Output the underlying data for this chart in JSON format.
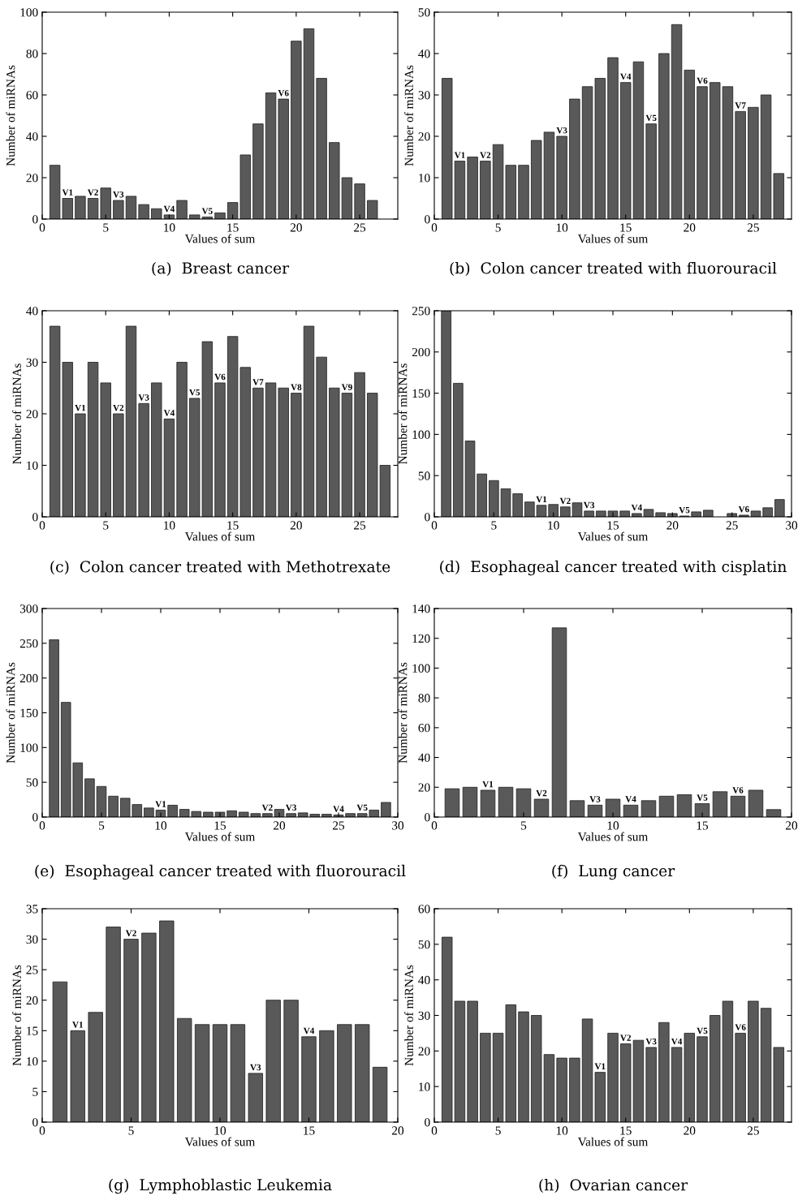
{
  "chart_data": [
    {
      "type": "bar",
      "title": "(a)  Breast cancer",
      "xlabel": "Values of sum",
      "ylabel": "Number of miRNAs",
      "color": "#595959",
      "x": [
        1,
        2,
        3,
        4,
        5,
        6,
        7,
        8,
        9,
        10,
        11,
        12,
        13,
        14,
        15,
        16,
        17,
        18,
        19,
        20,
        21,
        22,
        23,
        24,
        25,
        26
      ],
      "values": [
        26,
        10,
        11,
        10,
        15,
        9,
        11,
        7,
        5,
        2,
        9,
        2,
        1,
        3,
        8,
        31,
        46,
        61,
        58,
        86,
        92,
        68,
        37,
        20,
        17,
        9
      ],
      "xlim": [
        0,
        28
      ],
      "xticks": [
        0,
        5,
        10,
        15,
        20,
        25
      ],
      "ylim": [
        0,
        100
      ],
      "yticks": [
        0,
        20,
        40,
        60,
        80,
        100
      ],
      "annotations": [
        {
          "text": "V1",
          "x": 2,
          "y": 10
        },
        {
          "text": "V2",
          "x": 4,
          "y": 10
        },
        {
          "text": "V3",
          "x": 6,
          "y": 9
        },
        {
          "text": "V4",
          "x": 10,
          "y": 2
        },
        {
          "text": "V5",
          "x": 13,
          "y": 1
        },
        {
          "text": "V6",
          "x": 19,
          "y": 58
        }
      ]
    },
    {
      "type": "bar",
      "title": "(b)  Colon cancer treated with fluorouracil",
      "xlabel": "Values of sum",
      "ylabel": "Number of miRNAs",
      "color": "#595959",
      "x": [
        1,
        2,
        3,
        4,
        5,
        6,
        7,
        8,
        9,
        10,
        11,
        12,
        13,
        14,
        15,
        16,
        17,
        18,
        19,
        20,
        21,
        22,
        23,
        24,
        25,
        26,
        27
      ],
      "values": [
        34,
        14,
        15,
        14,
        18,
        13,
        13,
        19,
        21,
        20,
        29,
        32,
        34,
        39,
        33,
        38,
        23,
        40,
        47,
        36,
        32,
        33,
        32,
        26,
        27,
        30,
        11
      ],
      "xlim": [
        0,
        28
      ],
      "xticks": [
        0,
        5,
        10,
        15,
        20,
        25
      ],
      "ylim": [
        0,
        50
      ],
      "yticks": [
        0,
        10,
        20,
        30,
        40,
        50
      ],
      "annotations": [
        {
          "text": "V1",
          "x": 2,
          "y": 14
        },
        {
          "text": "V2",
          "x": 4,
          "y": 14
        },
        {
          "text": "V3",
          "x": 10,
          "y": 20
        },
        {
          "text": "V4",
          "x": 15,
          "y": 33
        },
        {
          "text": "V5",
          "x": 17,
          "y": 23
        },
        {
          "text": "V6",
          "x": 21,
          "y": 32
        },
        {
          "text": "V7",
          "x": 24,
          "y": 26
        }
      ]
    },
    {
      "type": "bar",
      "title": "(c)  Colon cancer treated with Methotrexate",
      "xlabel": "Values of sum",
      "ylabel": "Number of miRNAs",
      "color": "#595959",
      "x": [
        1,
        2,
        3,
        4,
        5,
        6,
        7,
        8,
        9,
        10,
        11,
        12,
        13,
        14,
        15,
        16,
        17,
        18,
        19,
        20,
        21,
        22,
        23,
        24,
        25,
        26,
        27
      ],
      "values": [
        37,
        30,
        20,
        30,
        26,
        20,
        37,
        22,
        26,
        19,
        30,
        23,
        34,
        26,
        35,
        29,
        25,
        26,
        25,
        24,
        37,
        31,
        25,
        24,
        28,
        24,
        10
      ],
      "xlim": [
        0,
        28
      ],
      "xticks": [
        0,
        5,
        10,
        15,
        20,
        25
      ],
      "ylim": [
        0,
        40
      ],
      "yticks": [
        0,
        10,
        20,
        30,
        40
      ],
      "annotations": [
        {
          "text": "V1",
          "x": 3,
          "y": 20
        },
        {
          "text": "V2",
          "x": 6,
          "y": 20
        },
        {
          "text": "V3",
          "x": 8,
          "y": 22
        },
        {
          "text": "V4",
          "x": 10,
          "y": 19
        },
        {
          "text": "V5",
          "x": 12,
          "y": 23
        },
        {
          "text": "V6",
          "x": 14,
          "y": 26
        },
        {
          "text": "V7",
          "x": 17,
          "y": 25
        },
        {
          "text": "V8",
          "x": 20,
          "y": 24
        },
        {
          "text": "V9",
          "x": 24,
          "y": 24
        }
      ]
    },
    {
      "type": "bar",
      "title": "(d)  Esophageal cancer treated with cisplatin",
      "xlabel": "Values of sum",
      "ylabel": "Number of miRNAs",
      "color": "#595959",
      "x": [
        1,
        2,
        3,
        4,
        5,
        6,
        7,
        8,
        9,
        10,
        11,
        12,
        13,
        14,
        15,
        16,
        17,
        18,
        19,
        20,
        21,
        22,
        23,
        24,
        25,
        26,
        27,
        28,
        29
      ],
      "values": [
        250,
        162,
        92,
        52,
        44,
        34,
        28,
        18,
        14,
        15,
        12,
        17,
        7,
        7,
        7,
        7,
        4,
        9,
        5,
        4,
        1,
        6,
        8,
        null,
        4,
        2,
        7,
        11,
        21
      ],
      "xlim": [
        0,
        30
      ],
      "xticks": [
        0,
        5,
        10,
        15,
        20,
        25,
        30
      ],
      "ylim": [
        0,
        250
      ],
      "yticks": [
        0,
        50,
        100,
        150,
        200,
        250
      ],
      "annotations": [
        {
          "text": "V1",
          "x": 9,
          "y": 14
        },
        {
          "text": "V2",
          "x": 11,
          "y": 12
        },
        {
          "text": "V3",
          "x": 13,
          "y": 7
        },
        {
          "text": "V4",
          "x": 17,
          "y": 4
        },
        {
          "text": "V5",
          "x": 21,
          "y": 1
        },
        {
          "text": "V6",
          "x": 26,
          "y": 2
        }
      ]
    },
    {
      "type": "bar",
      "title": "(e)  Esophageal cancer treated with fluorouracil",
      "xlabel": "Values of sum",
      "ylabel": "Number of miRNAs",
      "color": "#595959",
      "x": [
        1,
        2,
        3,
        4,
        5,
        6,
        7,
        8,
        9,
        10,
        11,
        12,
        13,
        14,
        15,
        16,
        17,
        18,
        19,
        20,
        21,
        22,
        23,
        24,
        25,
        26,
        27,
        28,
        29
      ],
      "values": [
        255,
        165,
        78,
        55,
        44,
        30,
        27,
        18,
        13,
        10,
        17,
        11,
        8,
        7,
        7,
        9,
        7,
        5,
        5,
        11,
        5,
        6,
        4,
        4,
        3,
        5,
        5,
        10,
        21
      ],
      "xlim": [
        0,
        30
      ],
      "xticks": [
        0,
        5,
        10,
        15,
        20,
        25,
        30
      ],
      "ylim": [
        0,
        300
      ],
      "yticks": [
        0,
        50,
        100,
        150,
        200,
        250,
        300
      ],
      "annotations": [
        {
          "text": "V1",
          "x": 10,
          "y": 10
        },
        {
          "text": "V2",
          "x": 19,
          "y": 5
        },
        {
          "text": "V3",
          "x": 21,
          "y": 5
        },
        {
          "text": "V4",
          "x": 25,
          "y": 3
        },
        {
          "text": "V5",
          "x": 27,
          "y": 5
        }
      ]
    },
    {
      "type": "bar",
      "title": "(f)  Lung cancer",
      "xlabel": "Values of sum",
      "ylabel": "Number of miRNAs",
      "color": "#595959",
      "x": [
        1,
        2,
        3,
        4,
        5,
        6,
        7,
        8,
        9,
        10,
        11,
        12,
        13,
        14,
        15,
        16,
        17,
        18,
        19
      ],
      "values": [
        19,
        20,
        18,
        20,
        19,
        12,
        127,
        11,
        8,
        12,
        8,
        11,
        14,
        15,
        9,
        17,
        14,
        18,
        5
      ],
      "xlim": [
        0,
        20
      ],
      "xticks": [
        0,
        5,
        10,
        15,
        20
      ],
      "ylim": [
        0,
        140
      ],
      "yticks": [
        0,
        20,
        40,
        60,
        80,
        100,
        120,
        140
      ],
      "annotations": [
        {
          "text": "V1",
          "x": 3,
          "y": 18
        },
        {
          "text": "V2",
          "x": 6,
          "y": 12
        },
        {
          "text": "V3",
          "x": 9,
          "y": 8
        },
        {
          "text": "V4",
          "x": 11,
          "y": 8
        },
        {
          "text": "V5",
          "x": 15,
          "y": 9
        },
        {
          "text": "V6",
          "x": 17,
          "y": 14
        }
      ]
    },
    {
      "type": "bar",
      "title": "(g)  Lymphoblastic Leukemia",
      "xlabel": "Values of sum",
      "ylabel": "Number of miRNAs",
      "color": "#595959",
      "x": [
        1,
        2,
        3,
        4,
        5,
        6,
        7,
        8,
        9,
        10,
        11,
        12,
        13,
        14,
        15,
        16,
        17,
        18,
        19
      ],
      "values": [
        23,
        15,
        18,
        32,
        30,
        31,
        33,
        17,
        16,
        16,
        16,
        8,
        20,
        20,
        14,
        15,
        16,
        16,
        9
      ],
      "xlim": [
        0,
        20
      ],
      "xticks": [
        0,
        5,
        10,
        15,
        20
      ],
      "ylim": [
        0,
        35
      ],
      "yticks": [
        0,
        5,
        10,
        15,
        20,
        25,
        30,
        35
      ],
      "annotations": [
        {
          "text": "V1",
          "x": 2,
          "y": 15
        },
        {
          "text": "V2",
          "x": 5,
          "y": 30
        },
        {
          "text": "V3",
          "x": 12,
          "y": 8
        },
        {
          "text": "V4",
          "x": 15,
          "y": 14
        }
      ]
    },
    {
      "type": "bar",
      "title": "(h)  Ovarian cancer",
      "xlabel": "Values of sum",
      "ylabel": "Number of miRNAs",
      "color": "#595959",
      "x": [
        1,
        2,
        3,
        4,
        5,
        6,
        7,
        8,
        9,
        10,
        11,
        12,
        13,
        14,
        15,
        16,
        17,
        18,
        19,
        20,
        21,
        22,
        23,
        24,
        25,
        26,
        27
      ],
      "values": [
        52,
        34,
        34,
        25,
        25,
        33,
        31,
        30,
        19,
        18,
        18,
        29,
        14,
        25,
        22,
        23,
        21,
        28,
        21,
        25,
        24,
        30,
        34,
        25,
        34,
        32,
        21
      ],
      "xlim": [
        0,
        28
      ],
      "xticks": [
        0,
        5,
        10,
        15,
        20,
        25
      ],
      "ylim": [
        0,
        60
      ],
      "yticks": [
        0,
        10,
        20,
        30,
        40,
        50,
        60
      ],
      "annotations": [
        {
          "text": "V1",
          "x": 13,
          "y": 14
        },
        {
          "text": "V2",
          "x": 15,
          "y": 22
        },
        {
          "text": "V3",
          "x": 17,
          "y": 21
        },
        {
          "text": "V4",
          "x": 19,
          "y": 21
        },
        {
          "text": "V5",
          "x": 21,
          "y": 24
        },
        {
          "text": "V6",
          "x": 24,
          "y": 25
        }
      ]
    }
  ]
}
